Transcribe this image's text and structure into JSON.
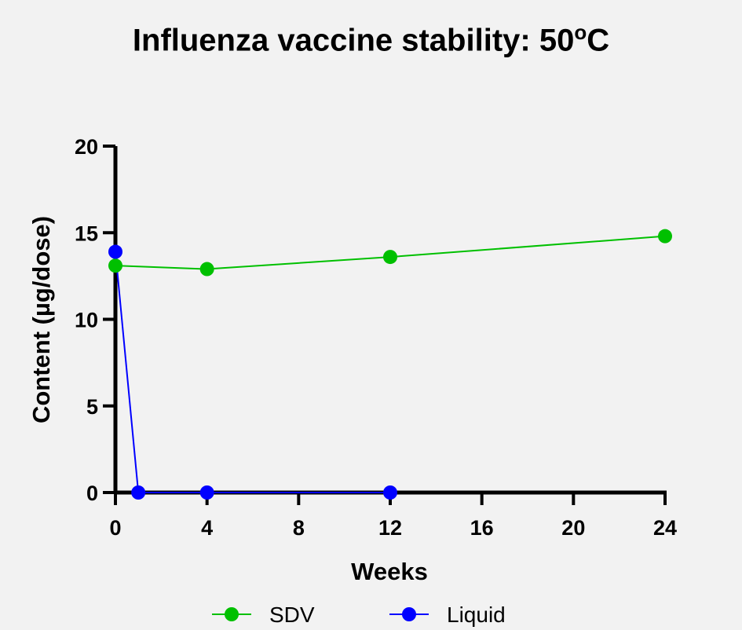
{
  "chart_data": {
    "type": "line",
    "title": "Influenza vaccine stability: 50",
    "title_sup": "o",
    "title_suffix": "C",
    "xlabel": "Weeks",
    "ylabel": "Content (µg/dose)",
    "xlim": [
      0,
      24
    ],
    "ylim": [
      0,
      20
    ],
    "x_ticks": [
      "0",
      "4",
      "8",
      "12",
      "16",
      "20",
      "24"
    ],
    "y_ticks": [
      "0",
      "5",
      "10",
      "15",
      "20"
    ],
    "grid": false,
    "legend_position": "bottom",
    "series": [
      {
        "name": "SDV",
        "color": "#00c000",
        "x": [
          0,
          4,
          12,
          24
        ],
        "y": [
          13.1,
          12.9,
          13.6,
          14.8
        ]
      },
      {
        "name": "Liquid",
        "color": "#0000ff",
        "x": [
          0,
          1,
          4,
          12
        ],
        "y": [
          13.9,
          0,
          0,
          0
        ]
      }
    ]
  }
}
